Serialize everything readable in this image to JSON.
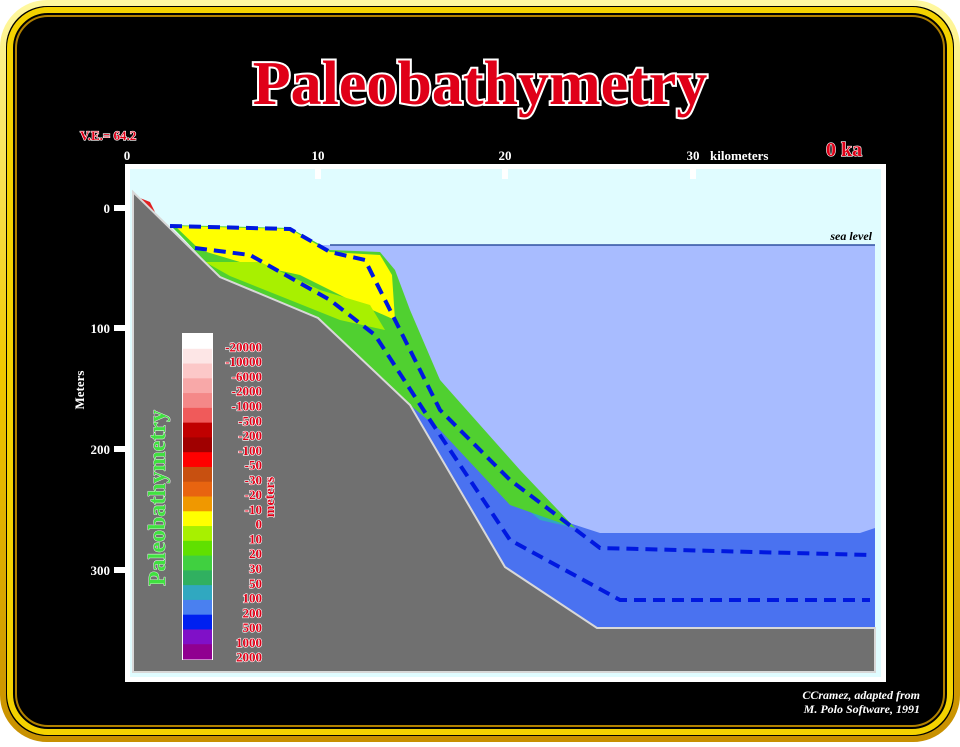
{
  "header": {
    "title": "Paleobathymetry",
    "exaggeration": "V.E.= 64.2",
    "age": "0 ka"
  },
  "x_axis": {
    "ticks": [
      "0",
      "10",
      "20",
      "30"
    ],
    "unit": "kilometers"
  },
  "y_axis": {
    "ticks": [
      "0",
      "100",
      "200",
      "300"
    ],
    "label": "Meters"
  },
  "annotation": {
    "sea_level": "sea level"
  },
  "legend": {
    "title": "Paleobathymetry",
    "unit": "meters",
    "entries": [
      {
        "label": "-20000",
        "color": "#ffffff"
      },
      {
        "label": "-10000",
        "color": "#fde6e6"
      },
      {
        "label": "-6000",
        "color": "#fcc8c8"
      },
      {
        "label": "-2000",
        "color": "#f8a8a8"
      },
      {
        "label": "-1000",
        "color": "#f48888"
      },
      {
        "label": "-500",
        "color": "#f05a5a"
      },
      {
        "label": "-200",
        "color": "#c00000"
      },
      {
        "label": "-100",
        "color": "#a00000"
      },
      {
        "label": "-50",
        "color": "#ff0000"
      },
      {
        "label": "-30",
        "color": "#c85010"
      },
      {
        "label": "-20",
        "color": "#e86410"
      },
      {
        "label": "-10",
        "color": "#f09800"
      },
      {
        "label": "0",
        "color": "#ffff00"
      },
      {
        "label": "10",
        "color": "#a8f000"
      },
      {
        "label": "20",
        "color": "#60e000"
      },
      {
        "label": "30",
        "color": "#40d040"
      },
      {
        "label": "50",
        "color": "#30b060"
      },
      {
        "label": "100",
        "color": "#30a8c0"
      },
      {
        "label": "200",
        "color": "#4a80f0"
      },
      {
        "label": "500",
        "color": "#0020f0"
      },
      {
        "label": "1000",
        "color": "#8010c8"
      },
      {
        "label": "2000",
        "color": "#900090"
      }
    ]
  },
  "credit": {
    "line1": "CCramez, adapted  from",
    "line2": "M. Polo Software, 1991"
  }
}
